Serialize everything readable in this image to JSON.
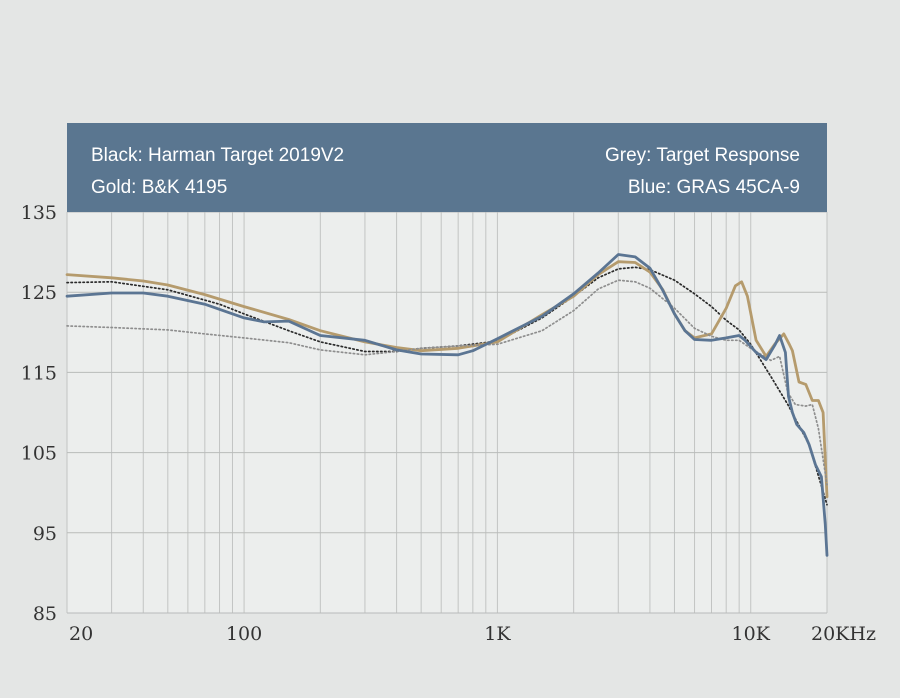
{
  "chart_data": {
    "type": "line",
    "title": "",
    "xlabel": "",
    "ylabel": "",
    "x_scale": "log",
    "xlim": [
      20,
      20000
    ],
    "ylim": [
      85,
      135
    ],
    "grid": true,
    "legend_placement": "top-banner",
    "legend": {
      "top_left": "Black: Harman Target 2019V2",
      "bottom_left": "Gold: B&K 4195",
      "top_right": "Grey: Target Response",
      "bottom_right": "Blue: GRAS 45CA-9"
    },
    "x_ticks": [
      {
        "value": 20,
        "label": "20"
      },
      {
        "value": 100,
        "label": "100"
      },
      {
        "value": 1000,
        "label": "1K"
      },
      {
        "value": 10000,
        "label": "10K"
      },
      {
        "value": 20000,
        "label": "20KHz"
      }
    ],
    "y_ticks": [
      {
        "value": 135,
        "label": "135"
      },
      {
        "value": 125,
        "label": "125"
      },
      {
        "value": 115,
        "label": "115"
      },
      {
        "value": 105,
        "label": "105"
      },
      {
        "value": 95,
        "label": "95"
      },
      {
        "value": 85,
        "label": "85"
      }
    ],
    "series": [
      {
        "name": "Black: Harman Target 2019V2",
        "color": "#2a2a2a",
        "style": "dotted",
        "points": [
          [
            20,
            126.2
          ],
          [
            30,
            126.3
          ],
          [
            50,
            125.3
          ],
          [
            80,
            123.5
          ],
          [
            100,
            122.3
          ],
          [
            150,
            120.2
          ],
          [
            200,
            118.8
          ],
          [
            300,
            117.6
          ],
          [
            400,
            117.6
          ],
          [
            500,
            118
          ],
          [
            700,
            118.3
          ],
          [
            1000,
            118.9
          ],
          [
            1500,
            121.8
          ],
          [
            2000,
            124.5
          ],
          [
            2500,
            126.8
          ],
          [
            3000,
            127.9
          ],
          [
            3500,
            128.1
          ],
          [
            4000,
            127.8
          ],
          [
            5000,
            126.5
          ],
          [
            6000,
            124.8
          ],
          [
            7000,
            123.2
          ],
          [
            8000,
            121.5
          ],
          [
            9000,
            120.3
          ],
          [
            10000,
            118.5
          ],
          [
            12000,
            114.5
          ],
          [
            14000,
            111
          ],
          [
            17000,
            106
          ],
          [
            20000,
            98.5
          ]
        ]
      },
      {
        "name": "Gold: B&K 4195",
        "color": "#b59b6d",
        "style": "solid",
        "points": [
          [
            20,
            127.2
          ],
          [
            30,
            126.8
          ],
          [
            40,
            126.4
          ],
          [
            50,
            125.9
          ],
          [
            70,
            124.7
          ],
          [
            100,
            123.2
          ],
          [
            150,
            121.6
          ],
          [
            200,
            120.2
          ],
          [
            300,
            118.8
          ],
          [
            400,
            118.1
          ],
          [
            500,
            117.7
          ],
          [
            700,
            118
          ],
          [
            1000,
            118.8
          ],
          [
            1500,
            122.2
          ],
          [
            2000,
            124.5
          ],
          [
            2500,
            127.2
          ],
          [
            3000,
            128.8
          ],
          [
            3500,
            128.7
          ],
          [
            4000,
            127.5
          ],
          [
            4500,
            125.3
          ],
          [
            5000,
            122.3
          ],
          [
            5500,
            120.2
          ],
          [
            6000,
            119.3
          ],
          [
            7000,
            119.8
          ],
          [
            8000,
            123
          ],
          [
            8700,
            125.8
          ],
          [
            9200,
            126.3
          ],
          [
            9700,
            124.5
          ],
          [
            10500,
            119
          ],
          [
            11500,
            117
          ],
          [
            12500,
            118.6
          ],
          [
            13500,
            119.8
          ],
          [
            14200,
            118.5
          ],
          [
            14600,
            117.7
          ],
          [
            15000,
            116
          ],
          [
            15500,
            113.8
          ],
          [
            16500,
            113.5
          ],
          [
            17500,
            111.5
          ],
          [
            18500,
            111.5
          ],
          [
            19300,
            110
          ],
          [
            20000,
            99.5
          ]
        ]
      },
      {
        "name": "Grey: Target Response",
        "color": "#8e8e8e",
        "style": "dotted",
        "points": [
          [
            20,
            120.8
          ],
          [
            30,
            120.6
          ],
          [
            50,
            120.3
          ],
          [
            70,
            119.8
          ],
          [
            100,
            119.3
          ],
          [
            150,
            118.7
          ],
          [
            200,
            117.8
          ],
          [
            300,
            117.2
          ],
          [
            400,
            117.6
          ],
          [
            500,
            118
          ],
          [
            700,
            118.3
          ],
          [
            1000,
            118.5
          ],
          [
            1500,
            120.2
          ],
          [
            2000,
            122.7
          ],
          [
            2500,
            125.4
          ],
          [
            3000,
            126.5
          ],
          [
            3500,
            126.3
          ],
          [
            4000,
            125.5
          ],
          [
            5000,
            123
          ],
          [
            6000,
            120.5
          ],
          [
            7000,
            119.5
          ],
          [
            8000,
            119
          ],
          [
            9000,
            119
          ],
          [
            10000,
            118
          ],
          [
            12000,
            116.5
          ],
          [
            13000,
            117
          ],
          [
            14000,
            112.5
          ],
          [
            15000,
            111
          ],
          [
            16500,
            110.8
          ],
          [
            17500,
            111
          ],
          [
            18500,
            108
          ],
          [
            20000,
            101
          ]
        ]
      },
      {
        "name": "Blue: GRAS 45CA-9",
        "color": "#5b7593",
        "style": "solid",
        "points": [
          [
            20,
            124.5
          ],
          [
            30,
            124.9
          ],
          [
            40,
            124.9
          ],
          [
            50,
            124.5
          ],
          [
            70,
            123.5
          ],
          [
            100,
            121.8
          ],
          [
            120,
            121.3
          ],
          [
            150,
            121.4
          ],
          [
            200,
            119.6
          ],
          [
            300,
            119
          ],
          [
            400,
            117.8
          ],
          [
            500,
            117.3
          ],
          [
            700,
            117.2
          ],
          [
            800,
            117.7
          ],
          [
            1000,
            119.2
          ],
          [
            1500,
            122
          ],
          [
            2000,
            124.8
          ],
          [
            2500,
            127.4
          ],
          [
            3000,
            129.7
          ],
          [
            3500,
            129.4
          ],
          [
            4000,
            128
          ],
          [
            4500,
            125.2
          ],
          [
            5000,
            122.3
          ],
          [
            5500,
            120.2
          ],
          [
            6000,
            119.1
          ],
          [
            7000,
            119
          ],
          [
            8000,
            119.3
          ],
          [
            9000,
            119.6
          ],
          [
            9500,
            119
          ],
          [
            10500,
            117.5
          ],
          [
            11500,
            116.6
          ],
          [
            12500,
            118.5
          ],
          [
            13000,
            119.6
          ],
          [
            13700,
            117.5
          ],
          [
            14100,
            112
          ],
          [
            14600,
            110
          ],
          [
            15200,
            108.5
          ],
          [
            16200,
            107.5
          ],
          [
            17000,
            106
          ],
          [
            18000,
            103.5
          ],
          [
            19000,
            102
          ],
          [
            19700,
            96
          ],
          [
            20000,
            92.2
          ]
        ]
      }
    ]
  }
}
